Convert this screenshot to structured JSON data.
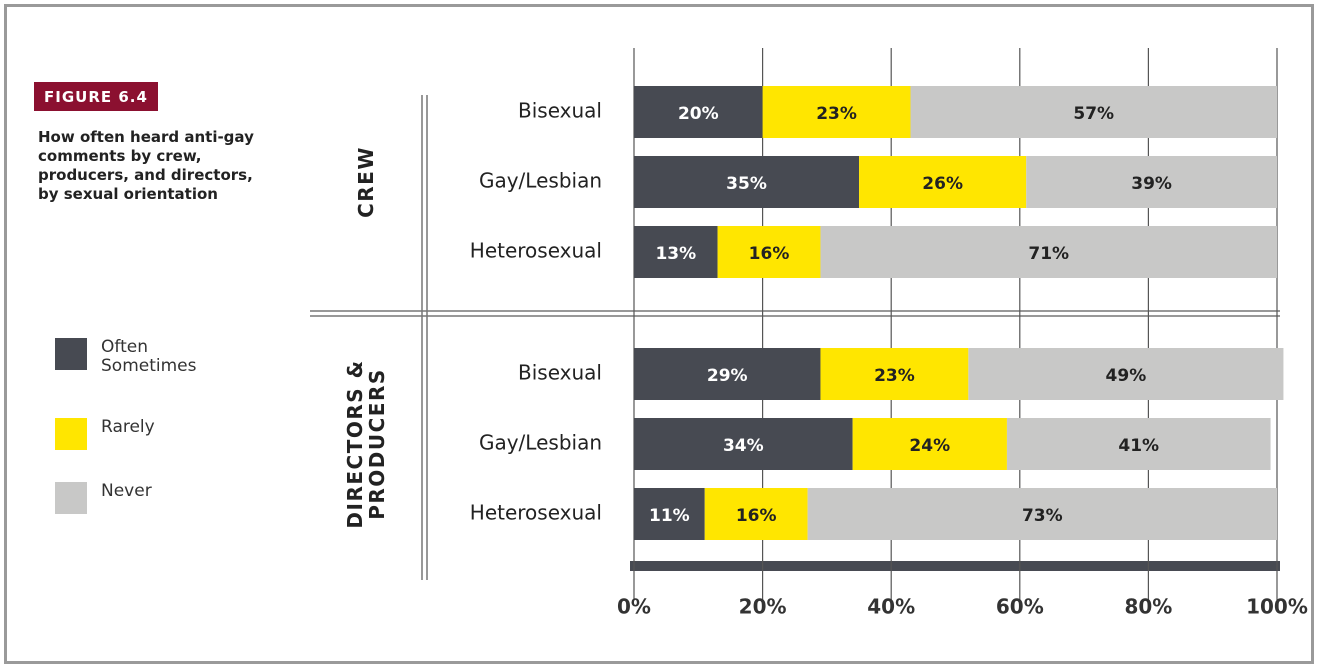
{
  "header": {
    "label": "FIGURE 6.4",
    "title": "How often heard anti-gay comments by crew, producers, and directors, by sexual orientation"
  },
  "chart_data": [
    {
      "type": "bar",
      "orientation": "horizontal",
      "stacked": true,
      "group": "CREW",
      "categories": [
        "Bisexual",
        "Gay/Lesbian",
        "Heterosexual"
      ],
      "series": [
        {
          "name": "Often Sometimes",
          "color": "#474a52",
          "values": [
            20,
            35,
            13
          ],
          "value_labels": [
            "20%",
            "35%",
            "13%"
          ]
        },
        {
          "name": "Rarely",
          "color": "#ffe600",
          "values": [
            23,
            26,
            16
          ],
          "value_labels": [
            "23%",
            "26%",
            "16%"
          ]
        },
        {
          "name": "Never",
          "color": "#c8c8c7",
          "values": [
            57,
            39,
            71
          ],
          "value_labels": [
            "57%",
            "39%",
            "71%"
          ]
        }
      ],
      "xlim": [
        0,
        100
      ],
      "grid": true
    },
    {
      "type": "bar",
      "orientation": "horizontal",
      "stacked": true,
      "group": "DIRECTORS & PRODUCERS",
      "categories": [
        "Bisexual",
        "Gay/Lesbian",
        "Heterosexual"
      ],
      "series": [
        {
          "name": "Often Sometimes",
          "color": "#474a52",
          "values": [
            29,
            34,
            11
          ],
          "value_labels": [
            "29%",
            "34%",
            "11%"
          ]
        },
        {
          "name": "Rarely",
          "color": "#ffe600",
          "values": [
            23,
            24,
            16
          ],
          "value_labels": [
            "23%",
            "24%",
            "16%"
          ]
        },
        {
          "name": "Never",
          "color": "#c8c8c7",
          "values": [
            49,
            41,
            73
          ],
          "value_labels": [
            "49%",
            "41%",
            "73%"
          ]
        }
      ],
      "xlim": [
        0,
        100
      ],
      "grid": true,
      "xticks": [
        {
          "value": 0,
          "label": "0%"
        },
        {
          "value": 20,
          "label": "20%"
        },
        {
          "value": 40,
          "label": "40%"
        },
        {
          "value": 60,
          "label": "60%"
        },
        {
          "value": 80,
          "label": "80%"
        },
        {
          "value": 100,
          "label": "100%"
        }
      ]
    }
  ]
}
